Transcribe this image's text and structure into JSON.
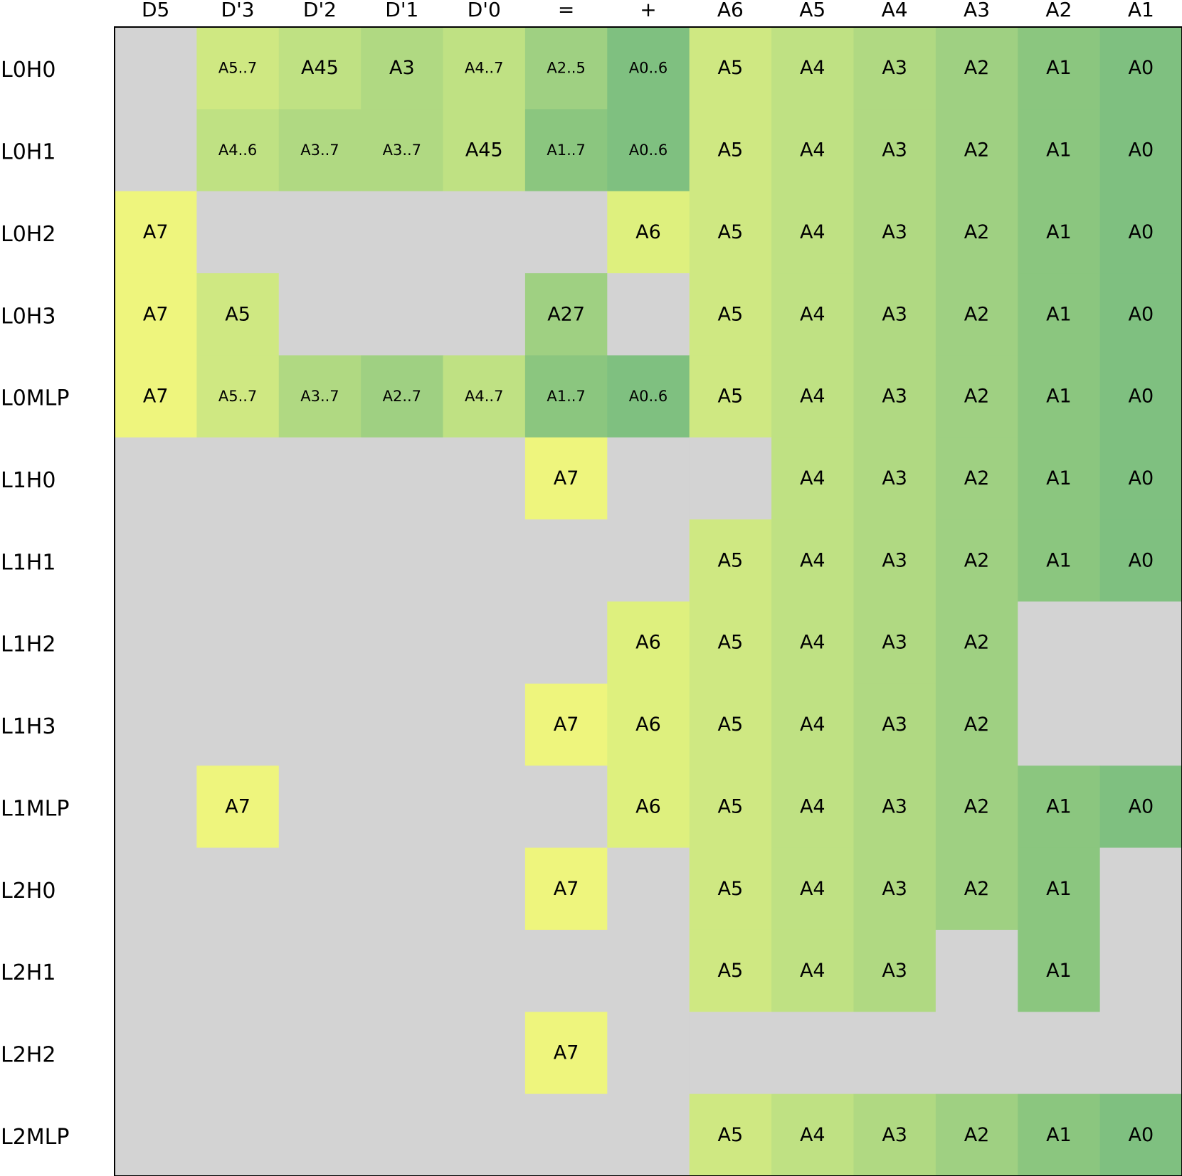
{
  "chart_data": {
    "type": "heatmap",
    "title": "",
    "xlabel": "",
    "ylabel": "",
    "columns": [
      "D5",
      "D'3",
      "D'2",
      "D'1",
      "D'0",
      "=",
      "+",
      "A6",
      "A5",
      "A4",
      "A3",
      "A2",
      "A1"
    ],
    "rows": [
      "L0H0",
      "L0H1",
      "L0H2",
      "L0H3",
      "L0MLP",
      "L1H0",
      "L1H1",
      "L1H2",
      "L1H3",
      "L1MLP",
      "L2H0",
      "L2H1",
      "L2H2",
      "L2MLP"
    ],
    "empty_color": "#d3d3d3",
    "level_colors": {
      "A0": "#7fc080",
      "A1": "#8bc67f",
      "A2": "#9fd082",
      "A3": "#b0d982",
      "A4": "#bfe183",
      "A5": "#cfe882",
      "A6": "#def07e",
      "A7": "#eef57d"
    },
    "cells": [
      [
        null,
        "A5..7",
        "A45",
        "A3",
        "A4..7",
        "A2..5",
        "A0..6",
        "A5",
        "A4",
        "A3",
        "A2",
        "A1",
        "A0"
      ],
      [
        null,
        "A4..6",
        "A3..7",
        "A3..7",
        "A45",
        "A1..7",
        "A0..6",
        "A5",
        "A4",
        "A3",
        "A2",
        "A1",
        "A0"
      ],
      [
        "A7",
        null,
        null,
        null,
        null,
        null,
        "A6",
        "A5",
        "A4",
        "A3",
        "A2",
        "A1",
        "A0"
      ],
      [
        "A7",
        "A5",
        null,
        null,
        null,
        "A27",
        null,
        "A5",
        "A4",
        "A3",
        "A2",
        "A1",
        "A0"
      ],
      [
        "A7",
        "A5..7",
        "A3..7",
        "A2..7",
        "A4..7",
        "A1..7",
        "A0..6",
        "A5",
        "A4",
        "A3",
        "A2",
        "A1",
        "A0"
      ],
      [
        null,
        null,
        null,
        null,
        null,
        "A7",
        null,
        null,
        "A4",
        "A3",
        "A2",
        "A1",
        "A0"
      ],
      [
        null,
        null,
        null,
        null,
        null,
        null,
        null,
        "A5",
        "A4",
        "A3",
        "A2",
        "A1",
        "A0"
      ],
      [
        null,
        null,
        null,
        null,
        null,
        null,
        "A6",
        "A5",
        "A4",
        "A3",
        "A2",
        null,
        null
      ],
      [
        null,
        null,
        null,
        null,
        null,
        "A7",
        "A6",
        "A5",
        "A4",
        "A3",
        "A2",
        null,
        null
      ],
      [
        null,
        "A7",
        null,
        null,
        null,
        null,
        "A6",
        "A5",
        "A4",
        "A3",
        "A2",
        "A1",
        "A0"
      ],
      [
        null,
        null,
        null,
        null,
        null,
        "A7",
        null,
        "A5",
        "A4",
        "A3",
        "A2",
        "A1",
        null
      ],
      [
        null,
        null,
        null,
        null,
        null,
        null,
        null,
        "A5",
        "A4",
        "A3",
        null,
        "A1",
        null
      ],
      [
        null,
        null,
        null,
        null,
        null,
        "A7",
        null,
        null,
        null,
        null,
        null,
        null,
        null
      ],
      [
        null,
        null,
        null,
        null,
        null,
        null,
        null,
        "A5",
        "A4",
        "A3",
        "A2",
        "A1",
        "A0"
      ]
    ]
  }
}
